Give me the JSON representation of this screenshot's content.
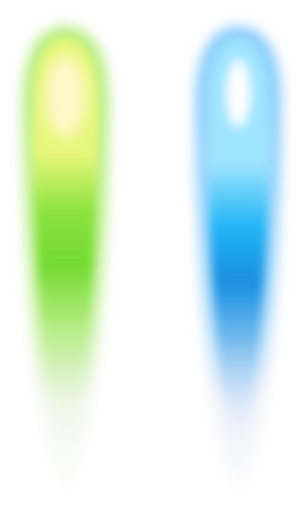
{
  "canvas": {
    "background": "#ffffff"
  },
  "glows": [
    {
      "name": "green-glow",
      "colors": {
        "core": "#fff7c8",
        "inner": "#e7f77a",
        "mid": "#8be23e",
        "deep": "#6fd92b",
        "halo": "#a8ea6a",
        "tail": "#f2f7ee"
      }
    },
    {
      "name": "blue-glow",
      "colors": {
        "core": "#ffffff",
        "inner": "#9fe4ff",
        "mid": "#22b6f5",
        "deep": "#1a8fe0",
        "halo": "#7cc6fb",
        "tail": "#eef0fa"
      }
    }
  ]
}
